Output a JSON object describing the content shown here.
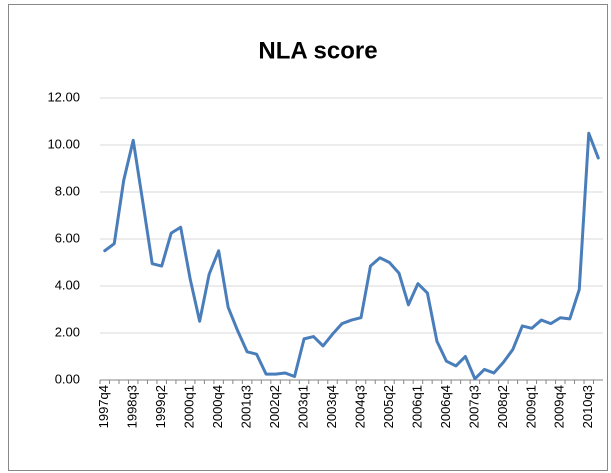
{
  "chart_data": {
    "type": "line",
    "title": "NLA score",
    "categories": [
      "1997q4",
      null,
      null,
      "1998q3",
      null,
      null,
      "1999q2",
      null,
      null,
      "2000q1",
      null,
      null,
      "2000q4",
      null,
      null,
      "2001q3",
      null,
      null,
      "2002q2",
      null,
      null,
      "2003q1",
      null,
      null,
      "2003q4",
      null,
      null,
      "2004q3",
      null,
      null,
      "2005q2",
      null,
      null,
      "2006q1",
      null,
      null,
      "2006q4",
      null,
      null,
      "2007q3",
      null,
      null,
      "2008q2",
      null,
      null,
      "2009q1",
      null,
      null,
      "2009q4",
      null,
      null,
      "2010q3",
      null
    ],
    "values": [
      5.5,
      5.8,
      8.5,
      10.2,
      7.6,
      4.95,
      4.85,
      6.25,
      6.5,
      4.3,
      2.5,
      4.5,
      5.5,
      3.1,
      2.1,
      1.2,
      1.1,
      0.25,
      0.25,
      0.3,
      0.15,
      1.75,
      1.85,
      1.45,
      1.95,
      2.4,
      2.55,
      2.65,
      4.85,
      5.2,
      5.0,
      4.55,
      3.2,
      4.1,
      3.7,
      1.65,
      0.8,
      0.6,
      1.0,
      0.05,
      0.45,
      0.3,
      0.75,
      1.3,
      2.3,
      2.2,
      2.55,
      2.4,
      2.65,
      2.6,
      3.85,
      10.5,
      9.45
    ],
    "color": "#4a7ebb",
    "ylim": [
      0,
      12
    ],
    "yticks": [
      {
        "value": 0,
        "label": "0.00"
      },
      {
        "value": 2,
        "label": "2.00"
      },
      {
        "value": 4,
        "label": "4.00"
      },
      {
        "value": 6,
        "label": "6.00"
      },
      {
        "value": 8,
        "label": "8.00"
      },
      {
        "value": 10,
        "label": "10.00"
      },
      {
        "value": 12,
        "label": "12.00"
      }
    ],
    "grid": true
  }
}
